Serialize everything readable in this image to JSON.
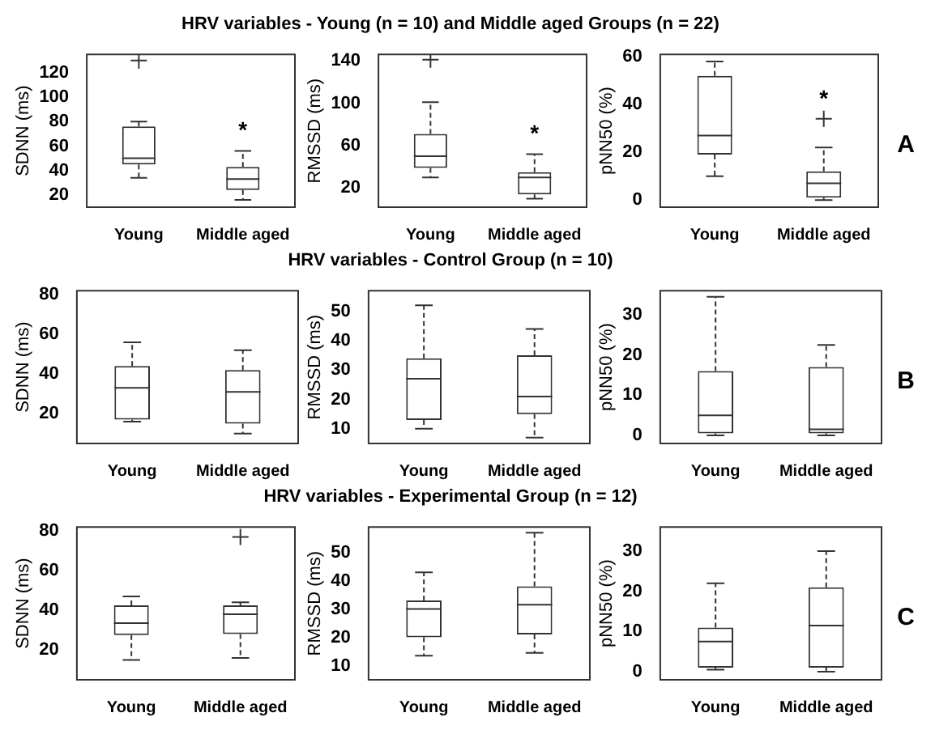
{
  "chart_data": [
    {
      "type": "box",
      "categories": [
        "Young",
        "Middle aged"
      ],
      "ylabel": "SDNN (ms)",
      "ylim": [
        10,
        135
      ],
      "yticks": [
        20,
        40,
        60,
        80,
        100,
        120
      ],
      "boxes": [
        {
          "low": 34,
          "q1": 45,
          "median": 50,
          "q3": 76,
          "high": 80,
          "outliers": [
            130
          ]
        },
        {
          "low": 16,
          "q1": 24,
          "median": 33,
          "q3": 43,
          "high": 56
        }
      ],
      "annotations": [
        "*"
      ]
    },
    {
      "type": "box",
      "title": "HRV variables - Young (n = 10) and Middle aged Groups (n = 22)",
      "categories": [
        "Young",
        "Middle aged"
      ],
      "ylabel": "RMSSD (ms)",
      "ylim": [
        2,
        146
      ],
      "yticks": [
        20,
        60,
        100,
        140
      ],
      "boxes": [
        {
          "low": 30,
          "q1": 39,
          "median": 50,
          "q3": 71,
          "high": 101,
          "outliers": [
            141
          ]
        },
        {
          "low": 10,
          "q1": 14,
          "median": 30,
          "q3": 35,
          "high": 52
        }
      ],
      "annotations": [
        "*"
      ]
    },
    {
      "type": "box",
      "categories": [
        "Young",
        "Middle aged"
      ],
      "ylabel": "pNN50 (%)",
      "ylim": [
        -3,
        61
      ],
      "yticks": [
        0,
        20,
        40,
        60
      ],
      "boxes": [
        {
          "low": 10,
          "q1": 19,
          "median": 27,
          "q3": 52,
          "high": 58
        },
        {
          "low": 0,
          "q1": 1,
          "median": 7,
          "q3": 12,
          "high": 22,
          "outliers": [
            34
          ]
        }
      ],
      "annotations": [
        "*",
        "A"
      ]
    },
    {
      "type": "box",
      "categories": [
        "Young",
        "Middle aged"
      ],
      "ylabel": "SDNN (ms)",
      "ylim": [
        5,
        82
      ],
      "yticks": [
        20,
        40,
        60,
        80
      ],
      "boxes": [
        {
          "low": 16,
          "q1": 17,
          "median": 33,
          "q3": 44,
          "high": 56
        },
        {
          "low": 10,
          "q1": 15,
          "median": 31,
          "q3": 42,
          "high": 52
        }
      ]
    },
    {
      "type": "box",
      "title": "HRV variables - Control Group (n = 10)",
      "categories": [
        "Young",
        "Middle aged"
      ],
      "ylabel": "RMSSD (ms)",
      "ylim": [
        5,
        57
      ],
      "yticks": [
        10,
        20,
        30,
        40,
        50
      ],
      "boxes": [
        {
          "low": 10,
          "q1": 13,
          "median": 27,
          "q3": 34,
          "high": 52
        },
        {
          "low": 7,
          "q1": 15,
          "median": 21,
          "q3": 35,
          "high": 44
        }
      ]
    },
    {
      "type": "box",
      "categories": [
        "Young",
        "Middle aged"
      ],
      "ylabel": "pNN50 (%)",
      "ylim": [
        -2,
        36
      ],
      "yticks": [
        0,
        10,
        20,
        30
      ],
      "boxes": [
        {
          "low": 0,
          "q1": 0.5,
          "median": 5,
          "q3": 16,
          "high": 34.5
        },
        {
          "low": 0,
          "q1": 0.5,
          "median": 1.5,
          "q3": 17,
          "high": 22.5
        }
      ],
      "annotations": [
        "B"
      ]
    },
    {
      "type": "box",
      "categories": [
        "Young",
        "Middle aged"
      ],
      "ylabel": "SDNN (ms)",
      "ylim": [
        5,
        82
      ],
      "yticks": [
        20,
        40,
        60,
        80
      ],
      "boxes": [
        {
          "low": 15,
          "q1": 27.5,
          "median": 33.5,
          "q3": 42.5,
          "high": 47
        },
        {
          "low": 16,
          "q1": 28,
          "median": 38,
          "q3": 42.5,
          "high": 44,
          "outliers": [
            77
          ]
        }
      ]
    },
    {
      "type": "box",
      "title": "HRV variables - Experimental Group (n = 12)",
      "categories": [
        "Young",
        "Middle aged"
      ],
      "ylabel": "RMSSD (ms)",
      "ylim": [
        5,
        59
      ],
      "yticks": [
        10,
        20,
        30,
        40,
        50
      ],
      "boxes": [
        {
          "low": 13.5,
          "q1": 20,
          "median": 30,
          "q3": 33,
          "high": 43
        },
        {
          "low": 14.5,
          "q1": 21,
          "median": 31.5,
          "q3": 38,
          "high": 57
        }
      ]
    },
    {
      "type": "box",
      "categories": [
        "Young",
        "Middle aged"
      ],
      "ylabel": "pNN50 (%)",
      "ylim": [
        -2,
        36
      ],
      "yticks": [
        0,
        10,
        20,
        30
      ],
      "boxes": [
        {
          "low": 0.5,
          "q1": 1,
          "median": 7.5,
          "q3": 11,
          "high": 22
        },
        {
          "low": 0,
          "q1": 1,
          "median": 11.5,
          "q3": 21,
          "high": 30
        }
      ],
      "annotations": [
        "C"
      ]
    }
  ]
}
